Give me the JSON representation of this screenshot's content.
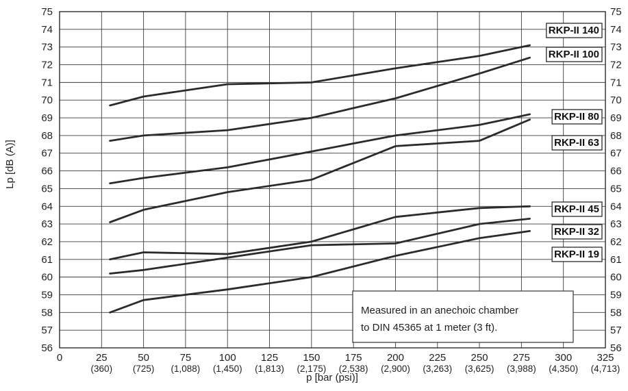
{
  "chart_data": {
    "type": "line",
    "xlabel": "p [bar (psi)]",
    "ylabel": "Lp [dB (A)]",
    "xlim": [
      0,
      325
    ],
    "ylim": [
      56,
      75
    ],
    "x_ticks": [
      {
        "bar": "0",
        "psi": ""
      },
      {
        "bar": "25",
        "psi": "(360)"
      },
      {
        "bar": "50",
        "psi": "(725)"
      },
      {
        "bar": "75",
        "psi": "(1,088)"
      },
      {
        "bar": "100",
        "psi": "(1,450)"
      },
      {
        "bar": "125",
        "psi": "(1,813)"
      },
      {
        "bar": "150",
        "psi": "(2,175)"
      },
      {
        "bar": "175",
        "psi": "(2,538)"
      },
      {
        "bar": "200",
        "psi": "(2,900)"
      },
      {
        "bar": "225",
        "psi": "(3,263)"
      },
      {
        "bar": "250",
        "psi": "(3,625)"
      },
      {
        "bar": "275",
        "psi": "(3,988)"
      },
      {
        "bar": "300",
        "psi": "(4,350)"
      },
      {
        "bar": "325",
        "psi": "(4,713)"
      }
    ],
    "y_ticks": [
      56,
      57,
      58,
      59,
      60,
      61,
      62,
      63,
      64,
      65,
      66,
      67,
      68,
      69,
      70,
      71,
      72,
      73,
      74,
      75
    ],
    "grid": true,
    "x": [
      30,
      50,
      100,
      150,
      200,
      250,
      280
    ],
    "series": [
      {
        "name": "RKP-II 140",
        "values": [
          69.7,
          70.2,
          70.9,
          71.0,
          71.8,
          72.5,
          73.1
        ]
      },
      {
        "name": "RKP-II 100",
        "values": [
          67.7,
          68.0,
          68.3,
          69.0,
          70.1,
          71.5,
          72.4
        ]
      },
      {
        "name": "RKP-II 80",
        "values": [
          65.3,
          65.6,
          66.2,
          67.1,
          68.0,
          68.6,
          69.2
        ]
      },
      {
        "name": "RKP-II 63",
        "values": [
          63.1,
          63.8,
          64.8,
          65.5,
          67.4,
          67.7,
          68.9
        ]
      },
      {
        "name": "RKP-II 45",
        "values": [
          61.0,
          61.4,
          61.3,
          62.0,
          63.4,
          63.9,
          64.0
        ]
      },
      {
        "name": "RKP-II 32",
        "values": [
          60.2,
          60.4,
          61.1,
          61.8,
          61.9,
          63.0,
          63.3
        ]
      },
      {
        "name": "RKP-II 19",
        "values": [
          58.0,
          58.7,
          59.3,
          60.0,
          61.2,
          62.2,
          62.6
        ]
      }
    ],
    "annotation": {
      "line1": "Measured in an anechoic chamber",
      "line2": "to DIN 45365 at 1 meter (3 ft)."
    }
  }
}
